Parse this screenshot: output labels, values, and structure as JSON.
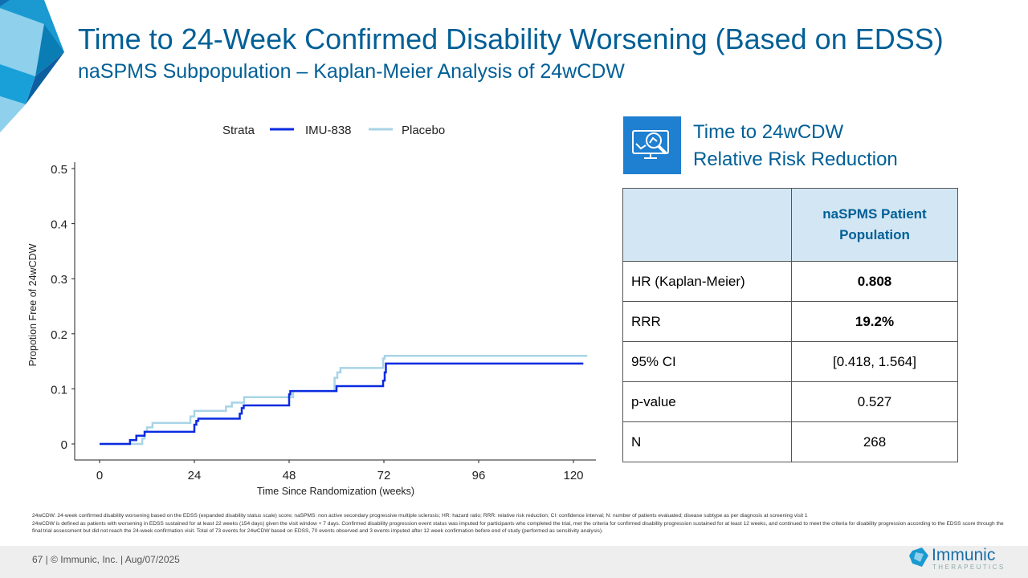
{
  "header": {
    "title": "Time to 24-Week Confirmed Disability Worsening (Based on EDSS)",
    "subtitle": "naSPMS Subpopulation – Kaplan-Meier Analysis of 24wCDW"
  },
  "chart_data": {
    "type": "line",
    "step": true,
    "xlabel": "Time Since Randomization (weeks)",
    "ylabel": "Propotion Free of 24wCDW",
    "xlim": [
      0,
      124
    ],
    "ylim": [
      0,
      0.5
    ],
    "xticks": [
      "0",
      "24",
      "48",
      "72",
      "96",
      "120"
    ],
    "yticks": [
      "0",
      "0.1",
      "0.2",
      "0.3",
      "0.4",
      "0.5"
    ],
    "legend": {
      "title": "Strata",
      "placement": "top"
    },
    "series": [
      {
        "name": "IMU-838",
        "color": "#0a2be0",
        "x": [
          0,
          7.7,
          9.3,
          11.4,
          24,
          24.5,
          25,
          35.5,
          36,
          36.5,
          48,
          48.3,
          60,
          71.8,
          72.2,
          72.5,
          122.5
        ],
        "y": [
          0,
          0.007,
          0.015,
          0.022,
          0.035,
          0.042,
          0.046,
          0.055,
          0.065,
          0.07,
          0.09,
          0.096,
          0.105,
          0.115,
          0.13,
          0.146,
          0.146
        ]
      },
      {
        "name": "Placebo",
        "color": "#a8d4e6",
        "x": [
          0,
          10.8,
          11.4,
          12,
          13.4,
          23,
          24,
          32,
          33.5,
          36.6,
          49,
          59.5,
          60.2,
          61,
          71.8,
          72.2,
          123.5
        ],
        "y": [
          0,
          0.01,
          0.022,
          0.03,
          0.038,
          0.05,
          0.06,
          0.068,
          0.075,
          0.085,
          0.096,
          0.12,
          0.13,
          0.138,
          0.155,
          0.16,
          0.16
        ]
      }
    ]
  },
  "kpi": {
    "icon": "monitor-magnifier-chart-icon",
    "line1": "Time to 24wCDW",
    "line2": "Relative Risk Reduction"
  },
  "table": {
    "header": "naSPMS Patient Population",
    "rows": [
      {
        "label": "HR (Kaplan-Meier)",
        "value": "0.808",
        "bold": true
      },
      {
        "label": "RRR",
        "value": "19.2%",
        "bold": true
      },
      {
        "label": "95% CI",
        "value": "[0.418, 1.564]",
        "bold": false
      },
      {
        "label": "p-value",
        "value": "0.527",
        "bold": false
      },
      {
        "label": "N",
        "value": "268",
        "bold": false
      }
    ]
  },
  "footnotes": [
    "24wCDW: 24-week confirmed disability worsening based on the EDSS (expanded disability status scale) score; naSPMS: non active secondary progressive multiple sclerosis; HR: hazard ratio; RRR: relative risk reduction; CI: confidence interval; N: number of patients evaluated; disease subtype as per diagnosis at screening visit 1",
    "24wCDW is defined as patients with worsening in EDSS sustained for at least 22 weeks (154 days) given the visit window + 7 days. Confirmed disability progression event status was imputed for participants who completed the trial, met the criteria for confirmed disability progression sustained for at least 12 weeks, and continued to meet the criteria for disability progression according to the EDSS score through the final trial assessment but did not reach the 24-week confirmation visit. Total of 73 events for 24wCDW based on EDSS, 70 events observed and 3 events imputed after 12 week confirmation before end of study (performed as sensitivity analysis)."
  ],
  "footer": {
    "page": "67  |  © Immunic, Inc.  | Aug/07/2025",
    "logo_name": "Immunic",
    "logo_sub": "THERAPEUTICS"
  }
}
